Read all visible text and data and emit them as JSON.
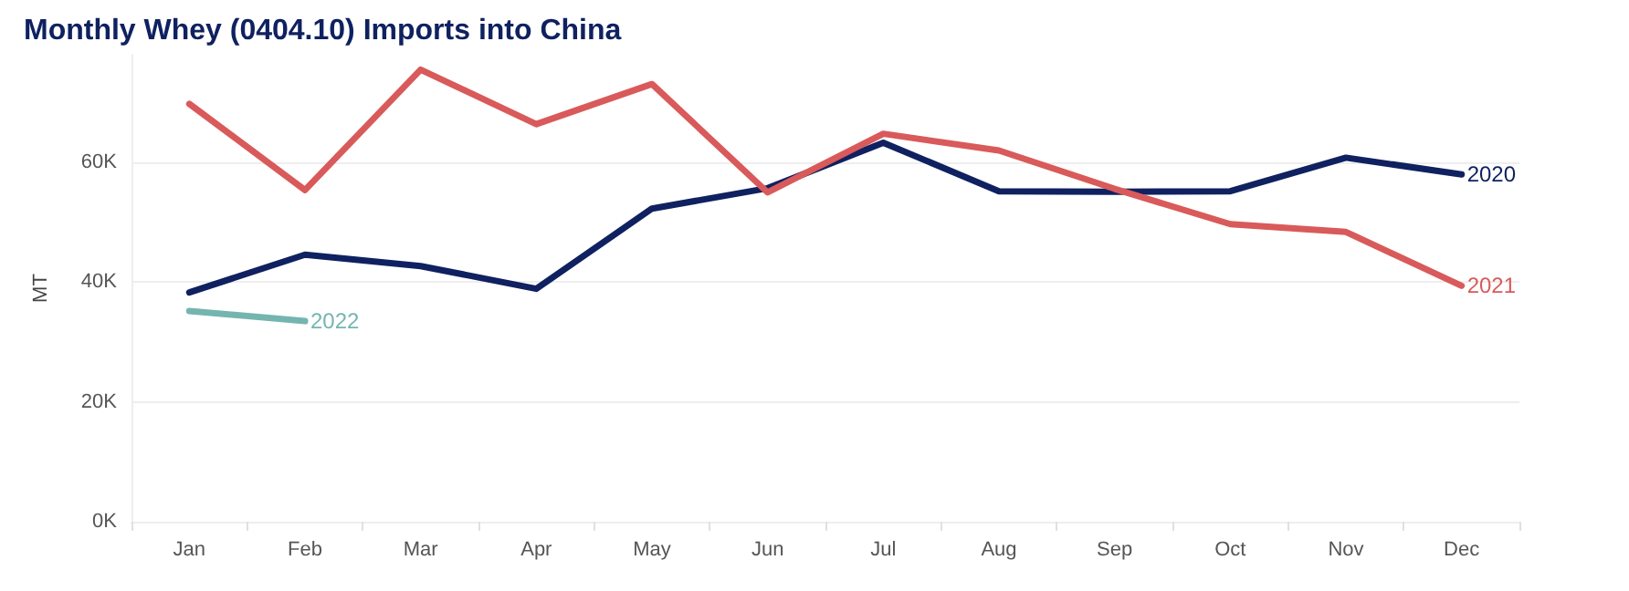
{
  "chart_data": {
    "type": "line",
    "title": "Monthly Whey (0404.10) Imports into China",
    "ylabel": "MT",
    "categories": [
      "Jan",
      "Feb",
      "Mar",
      "Apr",
      "May",
      "Jun",
      "Jul",
      "Aug",
      "Sep",
      "Oct",
      "Nov",
      "Dec"
    ],
    "series": [
      {
        "name": "2020",
        "color": "#0f2160",
        "values": [
          38300,
          44600,
          42700,
          38900,
          52300,
          55700,
          63300,
          55200,
          55100,
          55200,
          60800,
          58000
        ]
      },
      {
        "name": "2021",
        "color": "#d95a5a",
        "values": [
          69800,
          55400,
          75500,
          66400,
          73100,
          55000,
          64800,
          62000,
          55600,
          49700,
          48400,
          39400
        ]
      },
      {
        "name": "2022",
        "color": "#74b5b0",
        "values": [
          35200,
          33500,
          null,
          null,
          null,
          null,
          null,
          null,
          null,
          null,
          null,
          null
        ]
      }
    ],
    "ylim": [
      0,
      78000
    ],
    "yticks": [
      {
        "value": 0,
        "label": "0K"
      },
      {
        "value": 20000,
        "label": "20K"
      },
      {
        "value": 40000,
        "label": "40K"
      },
      {
        "value": 60000,
        "label": "60K"
      }
    ],
    "grid": "y",
    "legend": false,
    "marker": "none",
    "line_style": "solid"
  }
}
